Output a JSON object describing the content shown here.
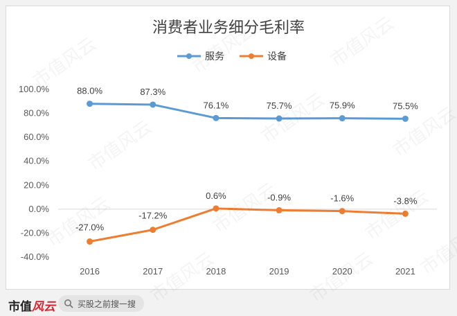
{
  "chart_data": {
    "type": "line",
    "title": "消费者业务细分毛利率",
    "categories": [
      "2016",
      "2017",
      "2018",
      "2019",
      "2020",
      "2021"
    ],
    "series": [
      {
        "name": "服务",
        "color": "#5b9bd5",
        "values": [
          88.0,
          87.3,
          76.1,
          75.7,
          75.9,
          75.5
        ],
        "labels": [
          "88.0%",
          "87.3%",
          "76.1%",
          "75.7%",
          "75.9%",
          "75.5%"
        ]
      },
      {
        "name": "设备",
        "color": "#ed7d31",
        "values": [
          -27.0,
          -17.2,
          0.6,
          -0.9,
          -1.6,
          -3.8
        ],
        "labels": [
          "-27.0%",
          "-17.2%",
          "0.6%",
          "-0.9%",
          "-1.6%",
          "-3.8%"
        ]
      }
    ],
    "ylim": [
      -40,
      100
    ],
    "y_ticks": [
      100,
      80,
      60,
      40,
      20,
      0,
      -20,
      -40
    ],
    "y_tick_labels": [
      "100.0%",
      "80.0%",
      "60.0%",
      "40.0%",
      "20.0%",
      "0.0%",
      "-20.0%",
      "-40.0%"
    ],
    "legend_position": "top-center",
    "grid": false
  },
  "footer": {
    "brand_prefix": "市值",
    "brand_accent": "风云",
    "search_text": "买股之前搜一搜",
    "search_icon": "search-icon"
  },
  "watermark_text": "市值风云"
}
